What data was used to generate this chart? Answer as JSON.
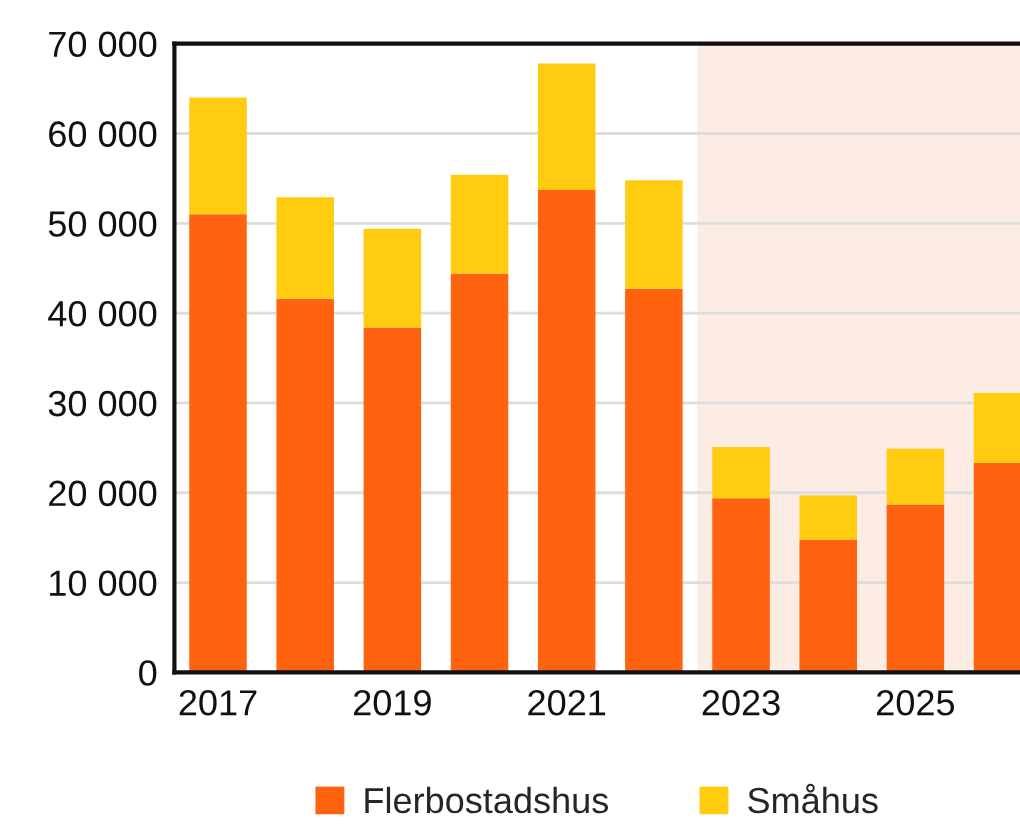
{
  "chart_data": {
    "type": "bar",
    "stacked": true,
    "x": [
      2017,
      2018,
      2019,
      2020,
      2021,
      2022,
      2023,
      2024,
      2025,
      2026
    ],
    "series": [
      {
        "name": "Flerbostadshus",
        "color": "#ff6310",
        "values": [
          51000,
          41600,
          38400,
          44400,
          53700,
          42700,
          19400,
          14800,
          18700,
          23300
        ]
      },
      {
        "name": "Småhus",
        "color": "#ffcc0f",
        "values": [
          13000,
          11300,
          11000,
          11000,
          14100,
          12100,
          5700,
          4900,
          6200,
          7800
        ]
      }
    ],
    "xlim": [
      2016.5,
      2026.2
    ],
    "xticks": [
      2017,
      2019,
      2021,
      2023,
      2025
    ],
    "ylim": [
      0,
      70000
    ],
    "yticks": [
      0,
      {
        "value": 10000,
        "label": "10 000"
      },
      {
        "value": 20000,
        "label": "20 000"
      },
      {
        "value": 30000,
        "label": "30 000"
      },
      {
        "value": 40000,
        "label": "40 000"
      },
      {
        "value": 50000,
        "label": "50 000"
      },
      {
        "value": 60000,
        "label": "60 000"
      },
      {
        "value": 70000,
        "label": "70 000"
      }
    ],
    "bands": [
      {
        "axis": "x",
        "from": 2022.5,
        "to": 2026.2,
        "color": "#fdece4"
      }
    ],
    "grid": "y",
    "legend": "bottom",
    "marker": "square"
  }
}
